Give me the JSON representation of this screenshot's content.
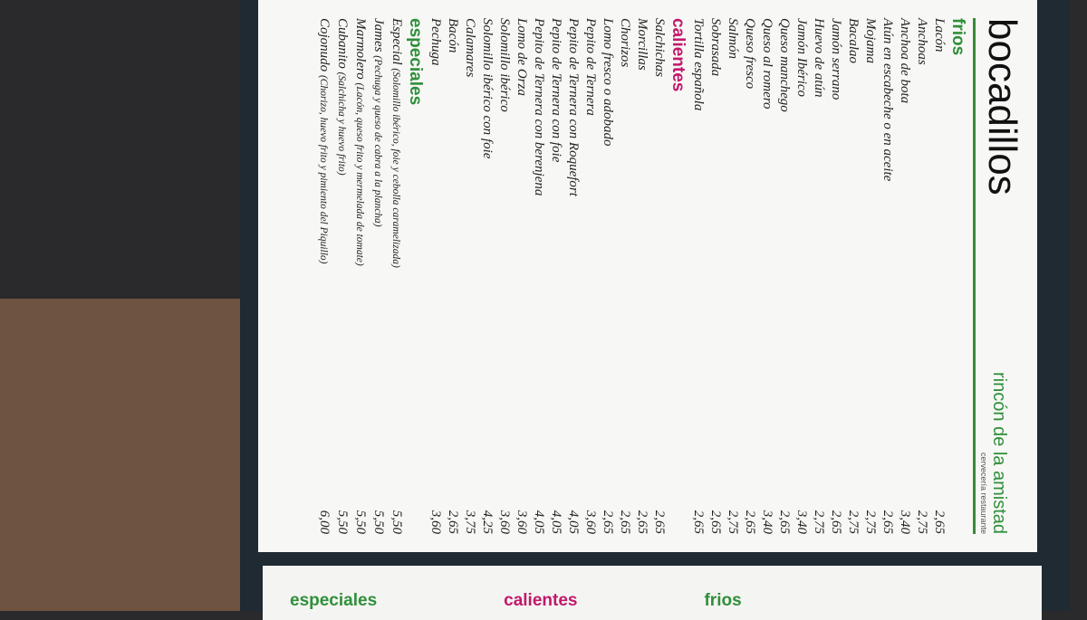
{
  "header": {
    "title": "bocadillos",
    "brand": "rincón de la amistad",
    "brand_sub": "cervecería restaurante"
  },
  "sections": [
    {
      "title": "frios",
      "items": [
        {
          "name": "Lacón",
          "price": "2,65"
        },
        {
          "name": "Anchoas",
          "price": "2,75"
        },
        {
          "name": "Anchoa de bota",
          "price": "3,40"
        },
        {
          "name": "Atún en escabeche o en aceite",
          "price": "2,65"
        },
        {
          "name": "Mojama",
          "price": "2,75"
        },
        {
          "name": "Bacalao",
          "price": "2,75"
        },
        {
          "name": "Jamón serrano",
          "price": "2,65"
        },
        {
          "name": "Huevo de atún",
          "price": "2,75"
        },
        {
          "name": "Jamón Ibérico",
          "price": "3,40"
        },
        {
          "name": "Queso manchego",
          "price": "2,65"
        },
        {
          "name": "Queso al romero",
          "price": "3,40"
        },
        {
          "name": "Queso fresco",
          "price": "2,65"
        },
        {
          "name": "Salmón",
          "price": "2,75"
        },
        {
          "name": "Sobrasada",
          "price": "2,65"
        },
        {
          "name": "Tortilla española",
          "price": "2,65"
        }
      ]
    },
    {
      "title": "calientes",
      "items": [
        {
          "name": "Salchichas",
          "price": "2,65"
        },
        {
          "name": "Morcillas",
          "price": "2,65"
        },
        {
          "name": "Chorizos",
          "price": "2,65"
        },
        {
          "name": "Lomo fresco o adobado",
          "price": "2,65"
        },
        {
          "name": "Pepito de Ternera",
          "price": "3,60"
        },
        {
          "name": "Pepito de Ternera con Roquefort",
          "price": "4,05"
        },
        {
          "name": "Pepito de Ternera con foie",
          "price": "4,05"
        },
        {
          "name": "Pepito de Ternera con berenjena",
          "price": "4,05"
        },
        {
          "name": "Lomo de Orza",
          "price": "3,60"
        },
        {
          "name": "Solomillo ibérico",
          "price": "3,60"
        },
        {
          "name": "Solomillo ibérico con foie",
          "price": "4,25"
        },
        {
          "name": "Calamares",
          "price": "3,75"
        },
        {
          "name": "Bacón",
          "price": "2,65"
        },
        {
          "name": "Pechuga",
          "price": "3,60"
        }
      ]
    },
    {
      "title": "especiales",
      "items": [
        {
          "name": "Especial",
          "detail": "(Solomillo ibérico, foie y cebolla caramelizada)",
          "price": "5,50"
        },
        {
          "name": "James",
          "detail": "(Pechuga y queso de cabra a la plancha)",
          "price": "5,50"
        },
        {
          "name": "Marmolero",
          "detail": "(Lacón, queso frito y mermelada de tomate)",
          "price": "5,50"
        },
        {
          "name": "Cubanito",
          "detail": "(Salchicha y huevo frito)",
          "price": "5,50"
        },
        {
          "name": "Cojonudo",
          "detail": "(Chorizo, huevo frito y pimiento del Piquillo)",
          "price": "6,00"
        }
      ]
    }
  ],
  "next_page": {
    "headings": [
      "especiales",
      "calientes",
      "frios"
    ]
  }
}
